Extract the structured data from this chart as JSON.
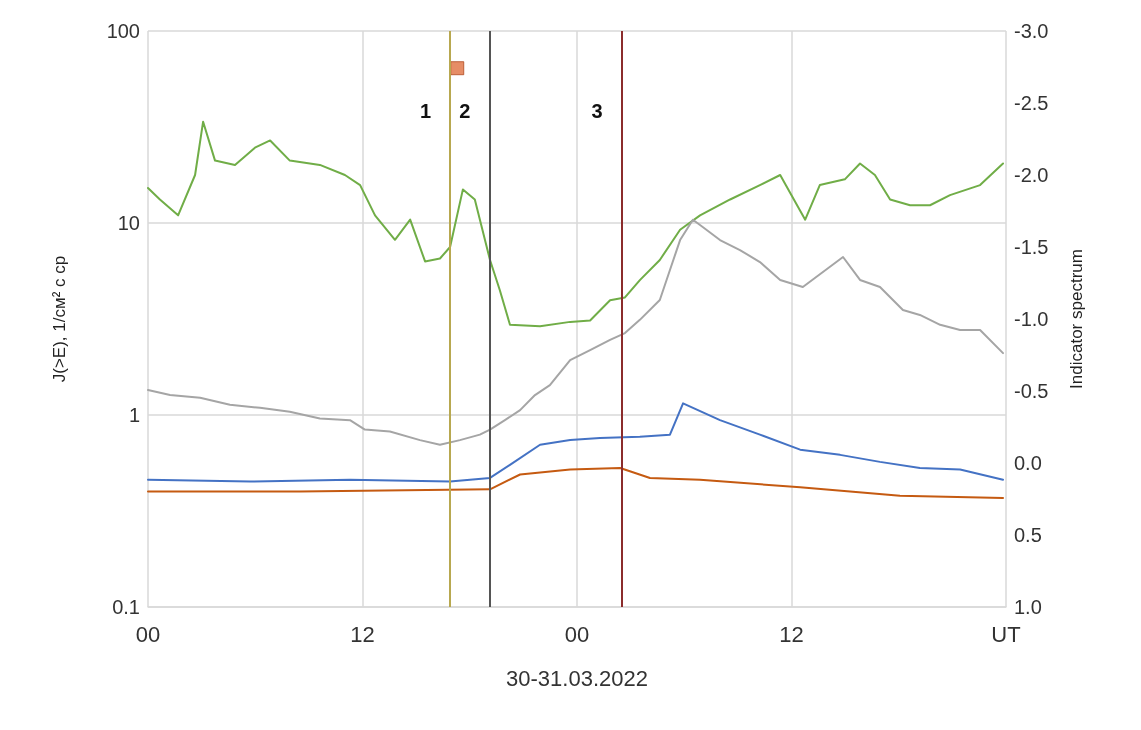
{
  "chart_data": {
    "type": "line",
    "xlabel": "30-31.03.2022",
    "ylabel": "J(>E), 1/см² с ср",
    "y2label": "Indicator spectrum",
    "xlim": [
      "2022-03-30T00:00",
      "2022-04-01T00:00"
    ],
    "xticks": [
      {
        "value": "2022-03-30T00:00",
        "label": "00"
      },
      {
        "value": "2022-03-30T12:00",
        "label": "12"
      },
      {
        "value": "2022-03-31T00:00",
        "label": "00"
      },
      {
        "value": "2022-03-31T12:00",
        "label": "12"
      },
      {
        "value": "2022-04-01T00:00",
        "label": "UT"
      }
    ],
    "ylim": [
      0.1,
      100
    ],
    "yticks": [
      0.1,
      1,
      10,
      100
    ],
    "y2lim": [
      1.0,
      -3.0
    ],
    "y2ticks": [
      {
        "value": -3,
        "label": "-3.0"
      },
      {
        "value": -2.5,
        "label": "-2.5"
      },
      {
        "value": -2,
        "label": "-2.0"
      },
      {
        "value": -1.5,
        "label": "-1.5"
      },
      {
        "value": -1,
        "label": "-1.0"
      },
      {
        "value": -0.5,
        "label": "-0.5"
      },
      {
        "value": 0,
        "label": "0.0"
      },
      {
        "value": 0.5,
        "label": "0.5"
      },
      {
        "value": 1,
        "label": "1.0"
      }
    ],
    "log": "y",
    "grid": true,
    "marker": "none",
    "series": [
      {
        "color": "#70ad47",
        "axis": "y2",
        "x": [
          "2022-03-30T00:00",
          "2022-03-30T00:40",
          "2022-03-30T01:41",
          "2022-03-30T02:38",
          "2022-03-30T03:05",
          "2022-03-30T03:45",
          "2022-03-30T04:52",
          "2022-03-30T05:59",
          "2022-03-30T06:50",
          "2022-03-30T07:56",
          "2022-03-30T09:37",
          "2022-03-30T11:01",
          "2022-03-30T11:52",
          "2022-03-30T12:42",
          "2022-03-30T13:49",
          "2022-03-30T14:40",
          "2022-03-30T15:30",
          "2022-03-30T16:20",
          "2022-03-30T16:54",
          "2022-03-30T17:37",
          "2022-03-30T18:17",
          "2022-03-30T19:08",
          "2022-03-30T19:41",
          "2022-03-30T20:15",
          "2022-03-30T21:56",
          "2022-03-30T23:37",
          "2022-03-31T00:44",
          "2022-03-31T01:51",
          "2022-03-31T02:41",
          "2022-03-31T03:31",
          "2022-03-31T04:38",
          "2022-03-31T05:46",
          "2022-03-31T06:53",
          "2022-03-31T08:34",
          "2022-03-31T10:14",
          "2022-03-31T11:22",
          "2022-03-31T12:46",
          "2022-03-31T13:35",
          "2022-03-31T14:59",
          "2022-03-31T15:50",
          "2022-03-31T16:40",
          "2022-03-31T17:31",
          "2022-03-31T18:38",
          "2022-03-31T19:45",
          "2022-03-31T20:52",
          "2022-03-31T22:33",
          "2022-03-31T23:50"
        ],
        "values": [
          -1.91,
          -1.83,
          -1.72,
          -2.0,
          -2.37,
          -2.1,
          -2.07,
          -2.19,
          -2.24,
          -2.1,
          -2.07,
          -2.0,
          -1.93,
          -1.72,
          -1.55,
          -1.69,
          -1.4,
          -1.42,
          -1.5,
          -1.9,
          -1.83,
          -1.41,
          -1.2,
          -0.96,
          -0.95,
          -0.98,
          -0.99,
          -1.13,
          -1.15,
          -1.27,
          -1.41,
          -1.62,
          -1.72,
          -1.83,
          -1.93,
          -2.0,
          -1.69,
          -1.93,
          -1.97,
          -2.08,
          -2.0,
          -1.83,
          -1.79,
          -1.79,
          -1.86,
          -1.93,
          -2.08
        ]
      },
      {
        "color": "#a5a5a5",
        "x": [
          "2022-03-30T00:00",
          "2022-03-30T01:14",
          "2022-03-30T02:55",
          "2022-03-30T04:35",
          "2022-03-30T06:16",
          "2022-03-30T07:56",
          "2022-03-30T09:37",
          "2022-03-30T11:18",
          "2022-03-30T12:08",
          "2022-03-30T13:32",
          "2022-03-30T15:13",
          "2022-03-30T16:20",
          "2022-03-30T17:27",
          "2022-03-30T18:34",
          "2022-03-30T19:08",
          "2022-03-30T19:58",
          "2022-03-30T20:49",
          "2022-03-30T21:39",
          "2022-03-30T22:29",
          "2022-03-30T23:37",
          "2022-03-31T00:44",
          "2022-03-31T01:51",
          "2022-03-31T02:41",
          "2022-03-31T03:31",
          "2022-03-31T04:38",
          "2022-03-31T05:12",
          "2022-03-31T05:46",
          "2022-03-31T06:29",
          "2022-03-31T06:53",
          "2022-03-31T08:00",
          "2022-03-31T09:07",
          "2022-03-31T10:14",
          "2022-03-31T11:22",
          "2022-03-31T12:38",
          "2022-03-31T14:53",
          "2022-03-31T15:50",
          "2022-03-31T16:57",
          "2022-03-31T18:14",
          "2022-03-31T19:11",
          "2022-03-31T20:19",
          "2022-03-31T21:26",
          "2022-03-31T22:33",
          "2022-03-31T23:50"
        ],
        "values": [
          1.35,
          1.27,
          1.23,
          1.13,
          1.09,
          1.04,
          0.96,
          0.94,
          0.84,
          0.82,
          0.74,
          0.7,
          0.74,
          0.79,
          0.84,
          0.94,
          1.06,
          1.27,
          1.43,
          1.93,
          2.18,
          2.46,
          2.67,
          3.13,
          3.97,
          5.69,
          8.15,
          10.4,
          9.77,
          8.15,
          7.23,
          6.26,
          5.05,
          4.64,
          6.65,
          5.05,
          4.64,
          3.52,
          3.32,
          2.95,
          2.77,
          2.77,
          2.1
        ]
      },
      {
        "color": "#4472c4",
        "x": [
          "2022-03-30T00:00",
          "2022-03-30T05:43",
          "2022-03-30T11:18",
          "2022-03-30T16:54",
          "2022-03-30T19:08",
          "2022-03-30T20:15",
          "2022-03-30T21:56",
          "2022-03-30T23:37",
          "2022-03-31T01:17",
          "2022-03-31T03:31",
          "2022-03-31T05:12",
          "2022-03-31T05:56",
          "2022-03-31T08:00",
          "2022-03-31T10:14",
          "2022-03-31T12:29",
          "2022-03-31T14:43",
          "2022-03-31T16:57",
          "2022-03-31T19:11",
          "2022-03-31T21:26",
          "2022-03-31T23:50"
        ],
        "values": [
          0.46,
          0.45,
          0.46,
          0.45,
          0.47,
          0.55,
          0.7,
          0.74,
          0.76,
          0.77,
          0.79,
          1.15,
          0.94,
          0.79,
          0.66,
          0.62,
          0.57,
          0.53,
          0.52,
          0.46
        ]
      },
      {
        "color": "#c55a11",
        "x": [
          "2022-03-30T00:00",
          "2022-03-30T08:30",
          "2022-03-30T19:08",
          "2022-03-30T20:49",
          "2022-03-30T23:37",
          "2022-03-31T02:25",
          "2022-03-31T04:05",
          "2022-03-31T06:53",
          "2022-03-31T12:29",
          "2022-03-31T18:04",
          "2022-03-31T23:50"
        ],
        "values": [
          0.4,
          0.4,
          0.41,
          0.49,
          0.52,
          0.53,
          0.47,
          0.46,
          0.42,
          0.38,
          0.37
        ]
      },
      {
        "type": "scatter",
        "marker": "square",
        "color": "#e07040",
        "x": [
          "2022-03-30T17:18"
        ],
        "values": [
          64
        ]
      }
    ],
    "ref_lines": [
      {
        "axis": "x",
        "value": "2022-03-30T16:54",
        "label": "1",
        "color": "#b8a850"
      },
      {
        "axis": "x",
        "value": "2022-03-30T19:06",
        "label": "2",
        "color": "#555555"
      },
      {
        "axis": "x",
        "value": "2022-03-31T02:30",
        "label": "3",
        "color": "#8b2c2c"
      }
    ]
  }
}
